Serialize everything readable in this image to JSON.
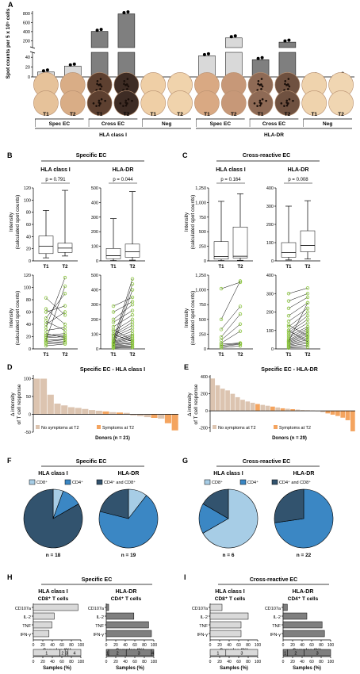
{
  "panels": {
    "A": {
      "letter": "A"
    },
    "B": {
      "letter": "B",
      "title": "Specific EC"
    },
    "C": {
      "letter": "C",
      "title": "Cross-reactive EC"
    },
    "D": {
      "letter": "D",
      "title": "Specific EC - HLA class I"
    },
    "E": {
      "letter": "E",
      "title": "Specific EC - HLA-DR"
    },
    "F": {
      "letter": "F",
      "title": "Specific EC"
    },
    "G": {
      "letter": "G",
      "title": "Cross-reactive EC"
    },
    "H": {
      "letter": "H",
      "title": "Specific EC"
    },
    "I": {
      "letter": "I",
      "title": "Cross-reactive EC"
    }
  },
  "colors": {
    "bar_light": "#d9d9d9",
    "bar_mid": "#c8c8c8",
    "bar_dark": "#7f7f7f",
    "tan": "#dcc4b0",
    "orange": "#f4a45f",
    "green": "#8cc63f",
    "cd8": "#a7cde6",
    "cd4": "#3b87c4",
    "both": "#32536e"
  },
  "chart_data": [
    {
      "type": "bar",
      "panel": "A",
      "ylabel": "Spot counts per 5 x 10⁵ cells",
      "yticks_upper": [
        "0",
        "200",
        "400",
        "600",
        "800"
      ],
      "yticks_lower": [
        "0",
        "20",
        "40"
      ],
      "categories": [
        "T1",
        "T2",
        "T1",
        "T2",
        "T1",
        "T2",
        "T1",
        "T2",
        "T1",
        "T2",
        "T1",
        "T2"
      ],
      "values": [
        10,
        22,
        405,
        790,
        1,
        1,
        43,
        262,
        35,
        170,
        2,
        3
      ],
      "groups": [
        "Spec EC",
        "Cross EC",
        "Neg",
        "Spec EC",
        "Cross EC",
        "Neg"
      ],
      "supergroups": [
        "HLA class I",
        "HLA-DR"
      ]
    },
    {
      "type": "box",
      "panel": "B",
      "ylabel": "Intensity (calculated spot counts)",
      "subplots": [
        {
          "title": "HLA class I",
          "pvalue": "p = 0.791",
          "yticks": [
            "0",
            "20",
            "40",
            "60",
            "80",
            "100",
            "120"
          ],
          "ymax": 120,
          "T1": {
            "min": 5,
            "q1": 12,
            "median": 24,
            "q3": 41,
            "max": 83
          },
          "T2": {
            "min": 8,
            "q1": 14,
            "median": 21,
            "q3": 29,
            "max": 116
          }
        },
        {
          "title": "HLA-DR",
          "pvalue": "p = 0.044",
          "yticks": [
            "0",
            "100",
            "200",
            "300",
            "400",
            "500"
          ],
          "ymax": 500,
          "T1": {
            "min": 2,
            "q1": 15,
            "median": 35,
            "q3": 85,
            "max": 290
          },
          "T2": {
            "min": 5,
            "q1": 25,
            "median": 62,
            "q3": 115,
            "max": 475
          }
        }
      ]
    },
    {
      "type": "box",
      "panel": "C",
      "ylabel": "Intensity (calculated spot counts)",
      "subplots": [
        {
          "title": "HLA class I",
          "pvalue": "p = 0.164",
          "yticks": [
            "0",
            "250",
            "500",
            "750",
            "1,000",
            "1,250"
          ],
          "ymax": 1250,
          "T1": {
            "min": 5,
            "q1": 30,
            "median": 75,
            "q3": 330,
            "max": 1020
          },
          "T2": {
            "min": 10,
            "q1": 50,
            "median": 80,
            "q3": 580,
            "max": 1150
          }
        },
        {
          "title": "HLA-DR",
          "pvalue": "p = 0.008",
          "yticks": [
            "0",
            "100",
            "200",
            "300",
            "400"
          ],
          "ymax": 400,
          "T1": {
            "min": 5,
            "q1": 20,
            "median": 45,
            "q3": 100,
            "max": 300
          },
          "T2": {
            "min": 10,
            "q1": 50,
            "median": 85,
            "q3": 165,
            "max": 330
          }
        }
      ]
    },
    {
      "type": "line",
      "panel": "B",
      "subplots": [
        {
          "yticks": [
            "0",
            "20",
            "40",
            "60",
            "80",
            "100",
            "120"
          ],
          "ymax": 120,
          "pairs": [
            [
              5,
              8
            ],
            [
              8,
              10
            ],
            [
              10,
              12
            ],
            [
              12,
              15
            ],
            [
              14,
              16
            ],
            [
              18,
              20
            ],
            [
              20,
              22
            ],
            [
              22,
              25
            ],
            [
              25,
              18
            ],
            [
              30,
              35
            ],
            [
              40,
              60
            ],
            [
              45,
              30
            ],
            [
              60,
              70
            ],
            [
              65,
              40
            ],
            [
              83,
              55
            ],
            [
              50,
              90
            ],
            [
              35,
              116
            ],
            [
              15,
              102
            ]
          ]
        },
        {
          "yticks": [
            "0",
            "100",
            "200",
            "300",
            "400",
            "500"
          ],
          "ymax": 500,
          "pairs": [
            [
              5,
              10
            ],
            [
              10,
              15
            ],
            [
              15,
              20
            ],
            [
              20,
              30
            ],
            [
              25,
              40
            ],
            [
              30,
              45
            ],
            [
              35,
              60
            ],
            [
              40,
              70
            ],
            [
              45,
              80
            ],
            [
              50,
              90
            ],
            [
              60,
              100
            ],
            [
              70,
              120
            ],
            [
              80,
              140
            ],
            [
              90,
              160
            ],
            [
              100,
              180
            ],
            [
              120,
              200
            ],
            [
              150,
              230
            ],
            [
              180,
              260
            ],
            [
              200,
              300
            ],
            [
              250,
              320
            ],
            [
              290,
              350
            ],
            [
              20,
              400
            ],
            [
              40,
              440
            ],
            [
              60,
              475
            ],
            [
              100,
              50
            ],
            [
              130,
              60
            ]
          ]
        }
      ]
    },
    {
      "type": "line",
      "panel": "C",
      "subplots": [
        {
          "yticks": [
            "0",
            "250",
            "500",
            "750",
            "1,000",
            "1,250"
          ],
          "ymax": 1250,
          "pairs": [
            [
              20,
              50
            ],
            [
              40,
              80
            ],
            [
              60,
              90
            ],
            [
              80,
              100
            ],
            [
              200,
              590
            ],
            [
              330,
              720
            ],
            [
              500,
              1150
            ],
            [
              1020,
              1130
            ],
            [
              150,
              420
            ],
            [
              100,
              300
            ]
          ]
        },
        {
          "yticks": [
            "0",
            "100",
            "200",
            "300",
            "400"
          ],
          "ymax": 400,
          "pairs": [
            [
              5,
              10
            ],
            [
              10,
              20
            ],
            [
              15,
              30
            ],
            [
              20,
              40
            ],
            [
              25,
              50
            ],
            [
              30,
              60
            ],
            [
              35,
              70
            ],
            [
              40,
              80
            ],
            [
              45,
              90
            ],
            [
              50,
              100
            ],
            [
              60,
              110
            ],
            [
              70,
              120
            ],
            [
              80,
              140
            ],
            [
              90,
              160
            ],
            [
              100,
              180
            ],
            [
              120,
              200
            ],
            [
              150,
              220
            ],
            [
              180,
              250
            ],
            [
              220,
              280
            ],
            [
              260,
              300
            ],
            [
              300,
              330
            ],
            [
              40,
              250
            ],
            [
              100,
              40
            ],
            [
              130,
              70
            ]
          ]
        }
      ]
    },
    {
      "type": "bar",
      "panel": "D",
      "ylabel": "Δ intensity of T cell response",
      "xlabel": "Donors (n = 21)",
      "yticks": [
        "-50",
        "0",
        "50",
        "100"
      ],
      "ymin": -50,
      "ymax": 110,
      "values": [
        100,
        100,
        55,
        30,
        25,
        20,
        18,
        15,
        12,
        10,
        8,
        6,
        5,
        4,
        -3,
        -5,
        -8,
        -10,
        -12,
        -25,
        -45
      ],
      "symptoms": [
        0,
        0,
        0,
        0,
        0,
        0,
        0,
        0,
        0,
        0,
        1,
        0,
        1,
        0,
        0,
        0,
        0,
        1,
        0,
        1,
        1
      ],
      "legend": {
        "no": "No symptoms at T2",
        "yes": "Symptoms at T2"
      }
    },
    {
      "type": "bar",
      "panel": "E",
      "ylabel": "Δ intensity of T cell response",
      "xlabel": "Donors (n = 29)",
      "yticks": [
        "-200",
        "0",
        "200",
        "400"
      ],
      "ymin": -250,
      "ymax": 420,
      "values": [
        380,
        300,
        260,
        240,
        200,
        160,
        130,
        110,
        95,
        80,
        70,
        60,
        50,
        40,
        30,
        25,
        20,
        15,
        10,
        8,
        5,
        -5,
        -15,
        -30,
        -45,
        -60,
        -80,
        -110,
        -240
      ],
      "symptoms": [
        0,
        0,
        0,
        0,
        0,
        0,
        0,
        0,
        0,
        1,
        0,
        0,
        1,
        0,
        1,
        0,
        1,
        0,
        0,
        0,
        0,
        0,
        0,
        1,
        1,
        1,
        1,
        1,
        1
      ],
      "legend": {
        "no": "No symptoms at T2",
        "yes": "Symptoms at T2"
      }
    },
    {
      "type": "pie",
      "panel": "F",
      "legend": [
        "CD8⁺",
        "CD4⁺",
        "CD4⁺ and CD8⁺"
      ],
      "pies": [
        {
          "title": "HLA class I",
          "n": "n = 18",
          "values": [
            5.6,
            11.1,
            83.3
          ]
        },
        {
          "title": "HLA-DR",
          "n": "n = 19",
          "values": [
            10.5,
            68.4,
            21.1
          ]
        }
      ]
    },
    {
      "type": "pie",
      "panel": "G",
      "legend": [
        "CD8⁺",
        "CD4⁺",
        "CD4⁺ and CD8⁺"
      ],
      "pies": [
        {
          "title": "HLA class I",
          "n": "n = 6",
          "values": [
            66.7,
            16.7,
            16.6
          ]
        },
        {
          "title": "HLA-DR",
          "n": "n = 22",
          "values": [
            0,
            72.7,
            27.3
          ]
        }
      ]
    },
    {
      "type": "bar",
      "panel": "H",
      "orientation": "horizontal",
      "xlabel": "Samples (%)",
      "xticks": [
        "0",
        "20",
        "40",
        "60",
        "80",
        "100"
      ],
      "categories": [
        "CD107a",
        "IL-2",
        "TNF",
        "IFN-γ"
      ],
      "subplots": [
        {
          "title": "HLA class I",
          "subtitle": "CD8⁺ T cells",
          "values": [
            94,
            44,
            39,
            33
          ],
          "stack": {
            "values": [
              56,
              11,
              6,
              27
            ],
            "labels": [
              "1",
              "2",
              "3",
              "4"
            ]
          }
        },
        {
          "title": "HLA-DR",
          "subtitle": "CD4⁺ T cells",
          "values": [
            5,
            58,
            89,
            95
          ],
          "stack": {
            "values": [
              5,
              37,
              53,
              5
            ],
            "labels": [
              "1",
              "2",
              "3",
              "4"
            ]
          }
        }
      ]
    },
    {
      "type": "bar",
      "panel": "I",
      "orientation": "horizontal",
      "xlabel": "Samples (%)",
      "xticks": [
        "0",
        "20",
        "40",
        "60",
        "80",
        "100"
      ],
      "categories": [
        "CD107a",
        "IL-2",
        "TNF",
        "IFN-γ"
      ],
      "subplots": [
        {
          "title": "HLA class I",
          "subtitle": "CD8⁺ T cells",
          "values": [
            25,
            80,
            65,
            65
          ],
          "stack": {
            "values": [
              33,
              67
            ],
            "labels": [
              "1",
              "3"
            ]
          }
        },
        {
          "title": "HLA-DR",
          "subtitle": "CD4⁺ T cells",
          "values": [
            9,
            50,
            82,
            87
          ],
          "stack": {
            "values": [
              9,
              35,
              56
            ],
            "labels": [
              "1",
              "2",
              "3"
            ]
          }
        }
      ]
    }
  ]
}
